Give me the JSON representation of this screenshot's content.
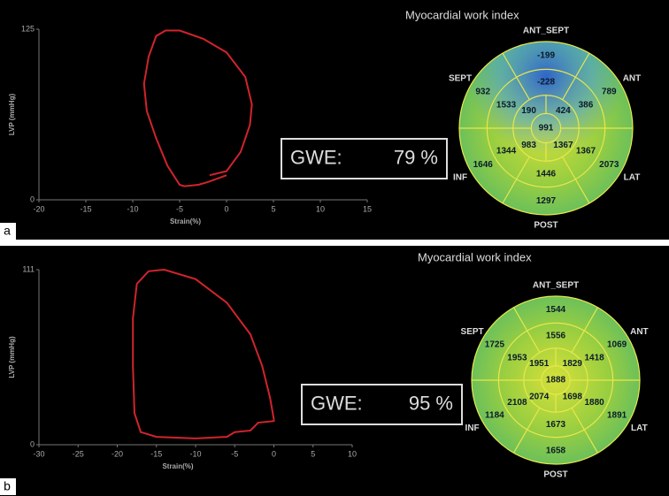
{
  "chart_data": [
    {
      "type": "line",
      "xlabel": "Strain(%)",
      "ylabel": "LVP (mmHg)",
      "x": [
        -1.8,
        0,
        1.5,
        2.5,
        2.7,
        2,
        0,
        -2.5,
        -5,
        -6.5,
        -7.5,
        -8.3,
        -8.8,
        -8.5,
        -7.5,
        -6.3,
        -5,
        -4.5,
        -3,
        -2,
        0
      ],
      "series": [
        {
          "color": "#d0242c",
          "values": [
            18,
            21,
            35,
            55,
            70,
            90,
            108,
            118,
            124,
            124,
            120,
            105,
            85,
            65,
            45,
            25,
            11,
            10,
            11,
            13,
            18
          ]
        }
      ],
      "xlim": [
        -20,
        15
      ],
      "ylim": [
        0,
        125
      ],
      "xticks": [
        -20,
        -15,
        -10,
        -5,
        0,
        5,
        10,
        15
      ],
      "yticks": [
        0,
        125
      ]
    },
    {
      "type": "line",
      "xlabel": "Strain(%)",
      "ylabel": "LVP (mmHg)",
      "x": [
        0,
        -0.5,
        -1.5,
        -3,
        -6,
        -10,
        -14,
        -16,
        -17.5,
        -18,
        -18,
        -17.8,
        -17,
        -15,
        -10,
        -6,
        -5,
        -3,
        -2,
        0,
        0
      ],
      "series": [
        {
          "color": "#d0242c",
          "values": [
            16,
            30,
            50,
            70,
            90,
            105,
            111,
            110,
            102,
            80,
            50,
            20,
            8,
            5,
            4,
            5,
            8,
            9,
            14,
            15,
            16
          ]
        }
      ],
      "xlim": [
        -30,
        10
      ],
      "ylim": [
        0,
        111
      ],
      "xticks": [
        -30,
        -25,
        -20,
        -15,
        -10,
        -5,
        0,
        5,
        10
      ],
      "yticks": [
        0,
        111
      ]
    }
  ],
  "panels": [
    {
      "label": "a",
      "title": "Myocardial work index",
      "gwe_label": "GWE:",
      "gwe_value": "79 %",
      "bullseye": {
        "directions": [
          "ANT_SEPT",
          "ANT",
          "LAT",
          "POST",
          "INF",
          "SEPT"
        ],
        "basal": [
          -199,
          789,
          2073,
          1297,
          1646,
          932
        ],
        "mid": [
          -228,
          386,
          1367,
          1446,
          1344,
          1533
        ],
        "apical": [
          424,
          1367,
          983,
          190
        ],
        "apex": 991
      }
    },
    {
      "label": "b",
      "title": "Myocardial work index",
      "gwe_label": "GWE:",
      "gwe_value": "95 %",
      "bullseye": {
        "directions": [
          "ANT_SEPT",
          "ANT",
          "LAT",
          "POST",
          "INF",
          "SEPT"
        ],
        "basal": [
          1544,
          1069,
          1891,
          1658,
          1184,
          1725
        ],
        "mid": [
          1556,
          1418,
          1880,
          1673,
          2108,
          1953
        ],
        "apical": [
          1829,
          1698,
          2074,
          1951
        ],
        "apex": 1888
      }
    }
  ]
}
